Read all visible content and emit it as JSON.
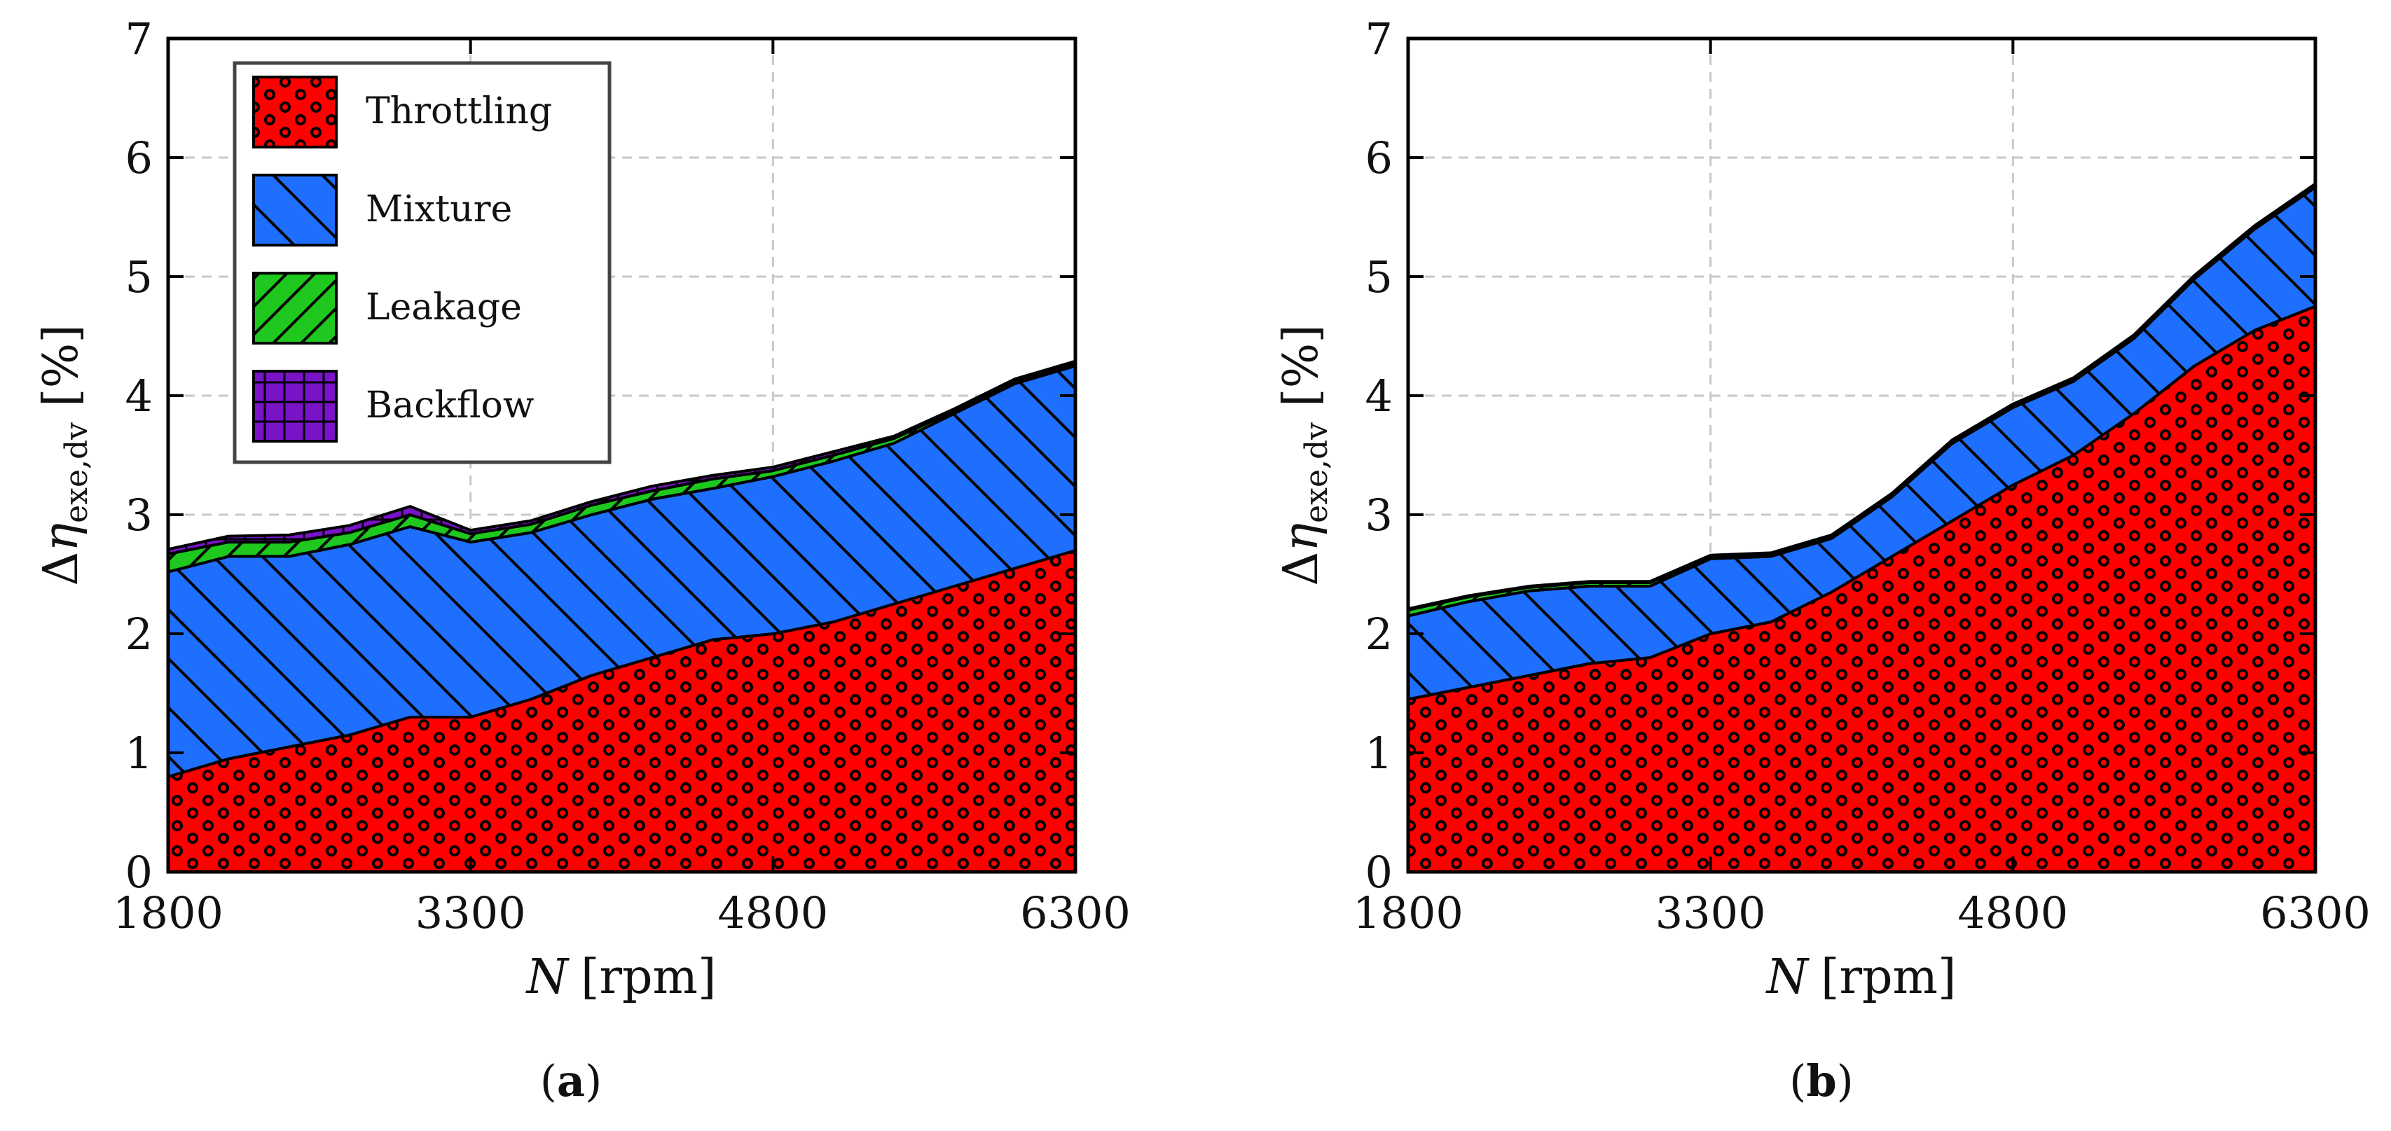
{
  "figure": {
    "panel_labels": [
      {
        "open": "(",
        "letter": "a",
        "close": ")"
      },
      {
        "open": "(",
        "letter": "b",
        "close": ")"
      }
    ]
  },
  "chart_data": [
    {
      "type": "area",
      "stacked": true,
      "panel": "(a)",
      "xlabel": {
        "var": "N",
        "unit": "[rpm]"
      },
      "ylabel": {
        "delta": "Δ",
        "eta": "η",
        "sub": "exe,dv",
        "unit": "[%]"
      },
      "xlim": [
        1800,
        6300
      ],
      "ylim": [
        0,
        7
      ],
      "xticks": [
        1800,
        3300,
        4800,
        6300
      ],
      "xtick_labels": [
        "1800",
        "3300",
        "4800",
        "6300"
      ],
      "yticks": [
        0,
        1,
        2,
        3,
        4,
        5,
        6,
        7
      ],
      "ytick_labels": [
        "0",
        "1",
        "2",
        "3",
        "4",
        "5",
        "6",
        "7"
      ],
      "grid": true,
      "legend": {
        "position": "top-left",
        "entries": [
          "Throttling",
          "Mixture",
          "Leakage",
          "Backflow"
        ]
      },
      "x": [
        1800,
        2100,
        2400,
        2700,
        3000,
        3300,
        3600,
        3900,
        4200,
        4500,
        4800,
        5100,
        5400,
        5700,
        6000,
        6300
      ],
      "series": [
        {
          "name": "Throttling",
          "color": "#ff0000",
          "values": [
            0.8,
            0.95,
            1.05,
            1.15,
            1.3,
            1.3,
            1.45,
            1.65,
            1.8,
            1.95,
            2.0,
            2.1,
            2.25,
            2.4,
            2.55,
            2.7
          ]
        },
        {
          "name": "Mixture",
          "color": "#1f6fff",
          "values": [
            1.72,
            1.7,
            1.6,
            1.6,
            1.6,
            1.47,
            1.4,
            1.35,
            1.33,
            1.27,
            1.32,
            1.35,
            1.35,
            1.45,
            1.55,
            1.55
          ]
        },
        {
          "name": "Leakage",
          "color": "#1ec81e",
          "values": [
            0.15,
            0.12,
            0.12,
            0.1,
            0.1,
            0.07,
            0.07,
            0.08,
            0.07,
            0.08,
            0.05,
            0.05,
            0.04,
            0.02,
            0.02,
            0.02
          ]
        },
        {
          "name": "Backflow",
          "color": "#7a12c8",
          "values": [
            0.04,
            0.05,
            0.06,
            0.06,
            0.07,
            0.03,
            0.03,
            0.03,
            0.04,
            0.03,
            0.03,
            0.03,
            0.02,
            0.02,
            0.02,
            0.02
          ]
        }
      ]
    },
    {
      "type": "area",
      "stacked": true,
      "panel": "(b)",
      "xlabel": {
        "var": "N",
        "unit": "[rpm]"
      },
      "ylabel": {
        "delta": "Δ",
        "eta": "η",
        "sub": "exe,dv",
        "unit": "[%]"
      },
      "xlim": [
        1800,
        6300
      ],
      "ylim": [
        0,
        7
      ],
      "xticks": [
        1800,
        3300,
        4800,
        6300
      ],
      "xtick_labels": [
        "1800",
        "3300",
        "4800",
        "6300"
      ],
      "yticks": [
        0,
        1,
        2,
        3,
        4,
        5,
        6,
        7
      ],
      "ytick_labels": [
        "0",
        "1",
        "2",
        "3",
        "4",
        "5",
        "6",
        "7"
      ],
      "grid": true,
      "x": [
        1800,
        2100,
        2400,
        2700,
        3000,
        3300,
        3600,
        3900,
        4200,
        4500,
        4800,
        5100,
        5400,
        5700,
        6000,
        6300
      ],
      "series": [
        {
          "name": "Throttling",
          "color": "#ff0000",
          "values": [
            1.45,
            1.55,
            1.65,
            1.75,
            1.8,
            2.0,
            2.1,
            2.35,
            2.65,
            2.95,
            3.25,
            3.5,
            3.85,
            4.25,
            4.55,
            4.75
          ]
        },
        {
          "name": "Mixture",
          "color": "#1f6fff",
          "values": [
            0.7,
            0.72,
            0.71,
            0.65,
            0.6,
            0.63,
            0.55,
            0.45,
            0.5,
            0.65,
            0.65,
            0.62,
            0.63,
            0.73,
            0.85,
            1.0
          ]
        },
        {
          "name": "Leakage",
          "color": "#1ec81e",
          "values": [
            0.05,
            0.04,
            0.03,
            0.03,
            0.03,
            0.02,
            0.02,
            0.02,
            0.02,
            0.02,
            0.02,
            0.02,
            0.02,
            0.02,
            0.02,
            0.02
          ]
        },
        {
          "name": "Backflow",
          "color": "#7a12c8",
          "values": [
            0.01,
            0.01,
            0.01,
            0.01,
            0.01,
            0.01,
            0.01,
            0.01,
            0.01,
            0.01,
            0.01,
            0.01,
            0.01,
            0.01,
            0.01,
            0.01
          ]
        }
      ]
    }
  ]
}
